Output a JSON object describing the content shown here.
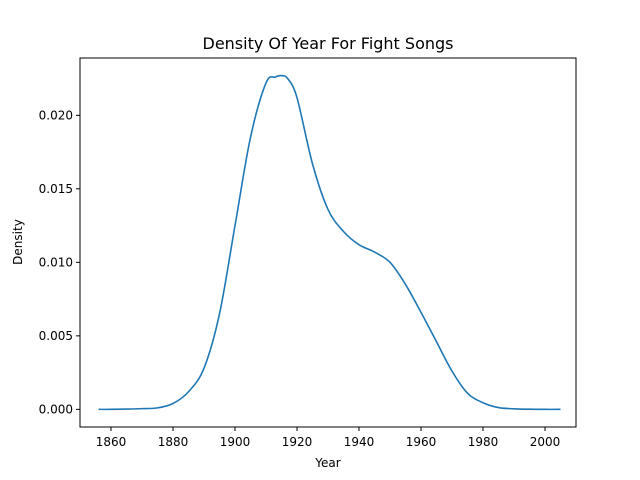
{
  "chart_data": {
    "type": "line",
    "title": "Density Of Year For Fight Songs",
    "xlabel": "Year",
    "ylabel": "Density",
    "xlim": [
      1850,
      2010
    ],
    "ylim": [
      -0.0012,
      0.0239
    ],
    "xticks": [
      1860,
      1880,
      1900,
      1920,
      1940,
      1960,
      1980,
      2000
    ],
    "xtick_labels": [
      "1860",
      "1880",
      "1900",
      "1920",
      "1940",
      "1960",
      "1980",
      "2000"
    ],
    "yticks": [
      0.0,
      0.005,
      0.01,
      0.015,
      0.02
    ],
    "ytick_labels": [
      "0.000",
      "0.005",
      "0.010",
      "0.015",
      "0.020"
    ],
    "grid": false,
    "legend": "none",
    "series": [
      {
        "color": "#1f77b4",
        "x": [
          1856,
          1860,
          1865,
          1870,
          1875,
          1880,
          1885,
          1890,
          1895,
          1900,
          1905,
          1910,
          1913,
          1915,
          1917,
          1920,
          1925,
          1930,
          1935,
          1940,
          1945,
          1950,
          1955,
          1960,
          1965,
          1970,
          1975,
          1980,
          1985,
          1990,
          1995,
          2000,
          2005
        ],
        "y": [
          0.0,
          0.0,
          2e-05,
          5e-05,
          0.0001,
          0.0004,
          0.0012,
          0.0028,
          0.0065,
          0.0125,
          0.0185,
          0.0222,
          0.0226,
          0.0227,
          0.0225,
          0.0212,
          0.0167,
          0.0136,
          0.0121,
          0.0112,
          0.0107,
          0.01,
          0.0085,
          0.0066,
          0.0046,
          0.0026,
          0.0011,
          0.00045,
          0.00012,
          4e-05,
          1e-05,
          0.0,
          0.0
        ]
      }
    ]
  }
}
